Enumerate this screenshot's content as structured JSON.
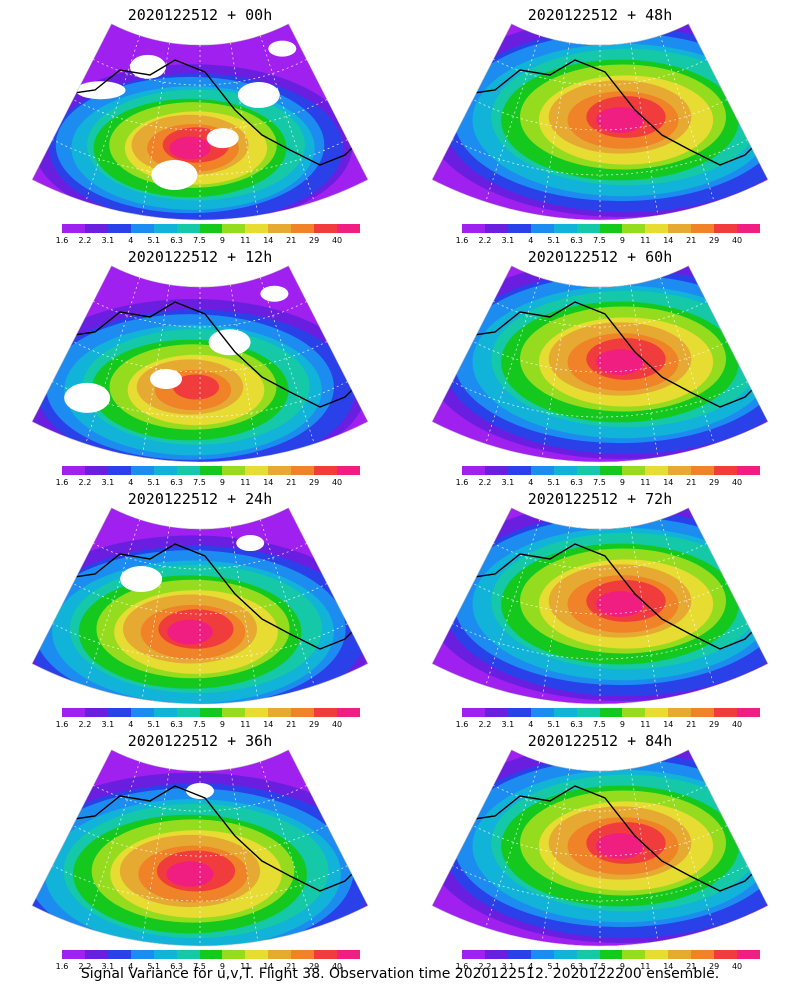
{
  "chart_data": {
    "type": "heatmap",
    "caption": "Signal Variance for u,v,T. Flight 38. Observation time 2020122512. 2020122200 ensemble.",
    "colorbar": {
      "ticks": [
        "1.6",
        "2.2",
        "3.1",
        "4",
        "5.1",
        "6.3",
        "7.5",
        "9",
        "11",
        "14",
        "21",
        "29",
        "40"
      ],
      "colors": [
        "#a020f0",
        "#6a1fe0",
        "#2a40e8",
        "#1c8cf0",
        "#11b3d8",
        "#14c8a8",
        "#14c81e",
        "#96dc1e",
        "#e6dc32",
        "#e6aa32",
        "#f08228",
        "#f03c3c",
        "#f01e80"
      ]
    },
    "panels": [
      {
        "title": "2020122512 + 00h",
        "lead_h": 0,
        "peak_level": 13,
        "coverage": 0.55
      },
      {
        "title": "2020122512 + 12h",
        "lead_h": 12,
        "peak_level": 11,
        "coverage": 0.72
      },
      {
        "title": "2020122512 + 24h",
        "lead_h": 24,
        "peak_level": 12,
        "coverage": 0.85
      },
      {
        "title": "2020122512 + 36h",
        "lead_h": 36,
        "peak_level": 12,
        "coverage": 0.96
      },
      {
        "title": "2020122512 + 48h",
        "lead_h": 48,
        "peak_level": 12,
        "coverage": 1.0
      },
      {
        "title": "2020122512 + 60h",
        "lead_h": 60,
        "peak_level": 12,
        "coverage": 1.0
      },
      {
        "title": "2020122512 + 72h",
        "lead_h": 72,
        "peak_level": 12,
        "coverage": 1.0
      },
      {
        "title": "2020122512 + 84h",
        "lead_h": 84,
        "peak_level": 12,
        "coverage": 1.0
      }
    ]
  }
}
